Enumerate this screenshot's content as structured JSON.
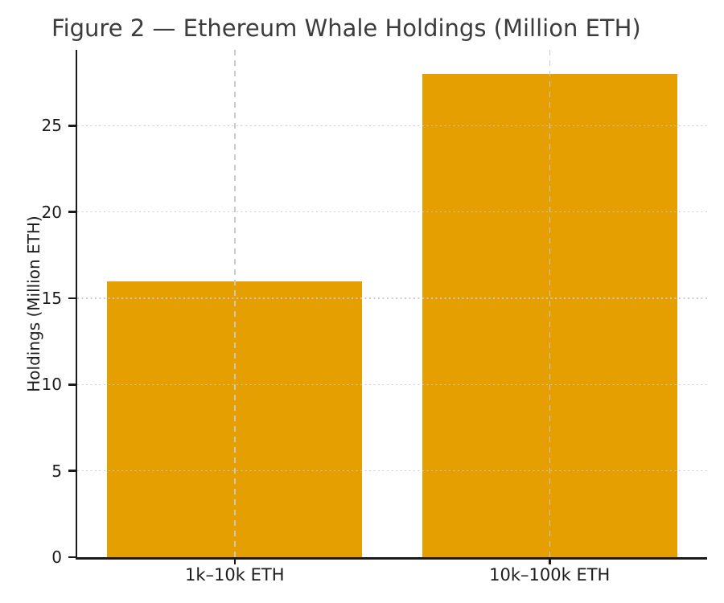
{
  "chart_data": {
    "type": "bar",
    "title": "Figure 2 — Ethereum Whale Holdings (Million ETH)",
    "categories": [
      "1k–10k ETH",
      "10k–100k ETH"
    ],
    "values": [
      16,
      28
    ],
    "xlabel": "",
    "ylabel": "Holdings (Million ETH)",
    "ylim": [
      0,
      29.4
    ],
    "yticks": [
      0,
      5,
      10,
      15,
      20,
      25
    ],
    "bar_color": "#E69F00",
    "bar_width_fraction": 0.81,
    "legend": "none",
    "grid": {
      "horizontal_style": "dotted",
      "vertical_style": "dashed",
      "color": "#c9c9c9",
      "drawn_on_top_of_bars": true
    },
    "spines": [
      "left",
      "bottom"
    ],
    "colors": {
      "background": "#ffffff",
      "title_text": "#3c3c3c",
      "tick_text": "#1c1c1c",
      "axis_line": "#1a1a1a"
    }
  }
}
